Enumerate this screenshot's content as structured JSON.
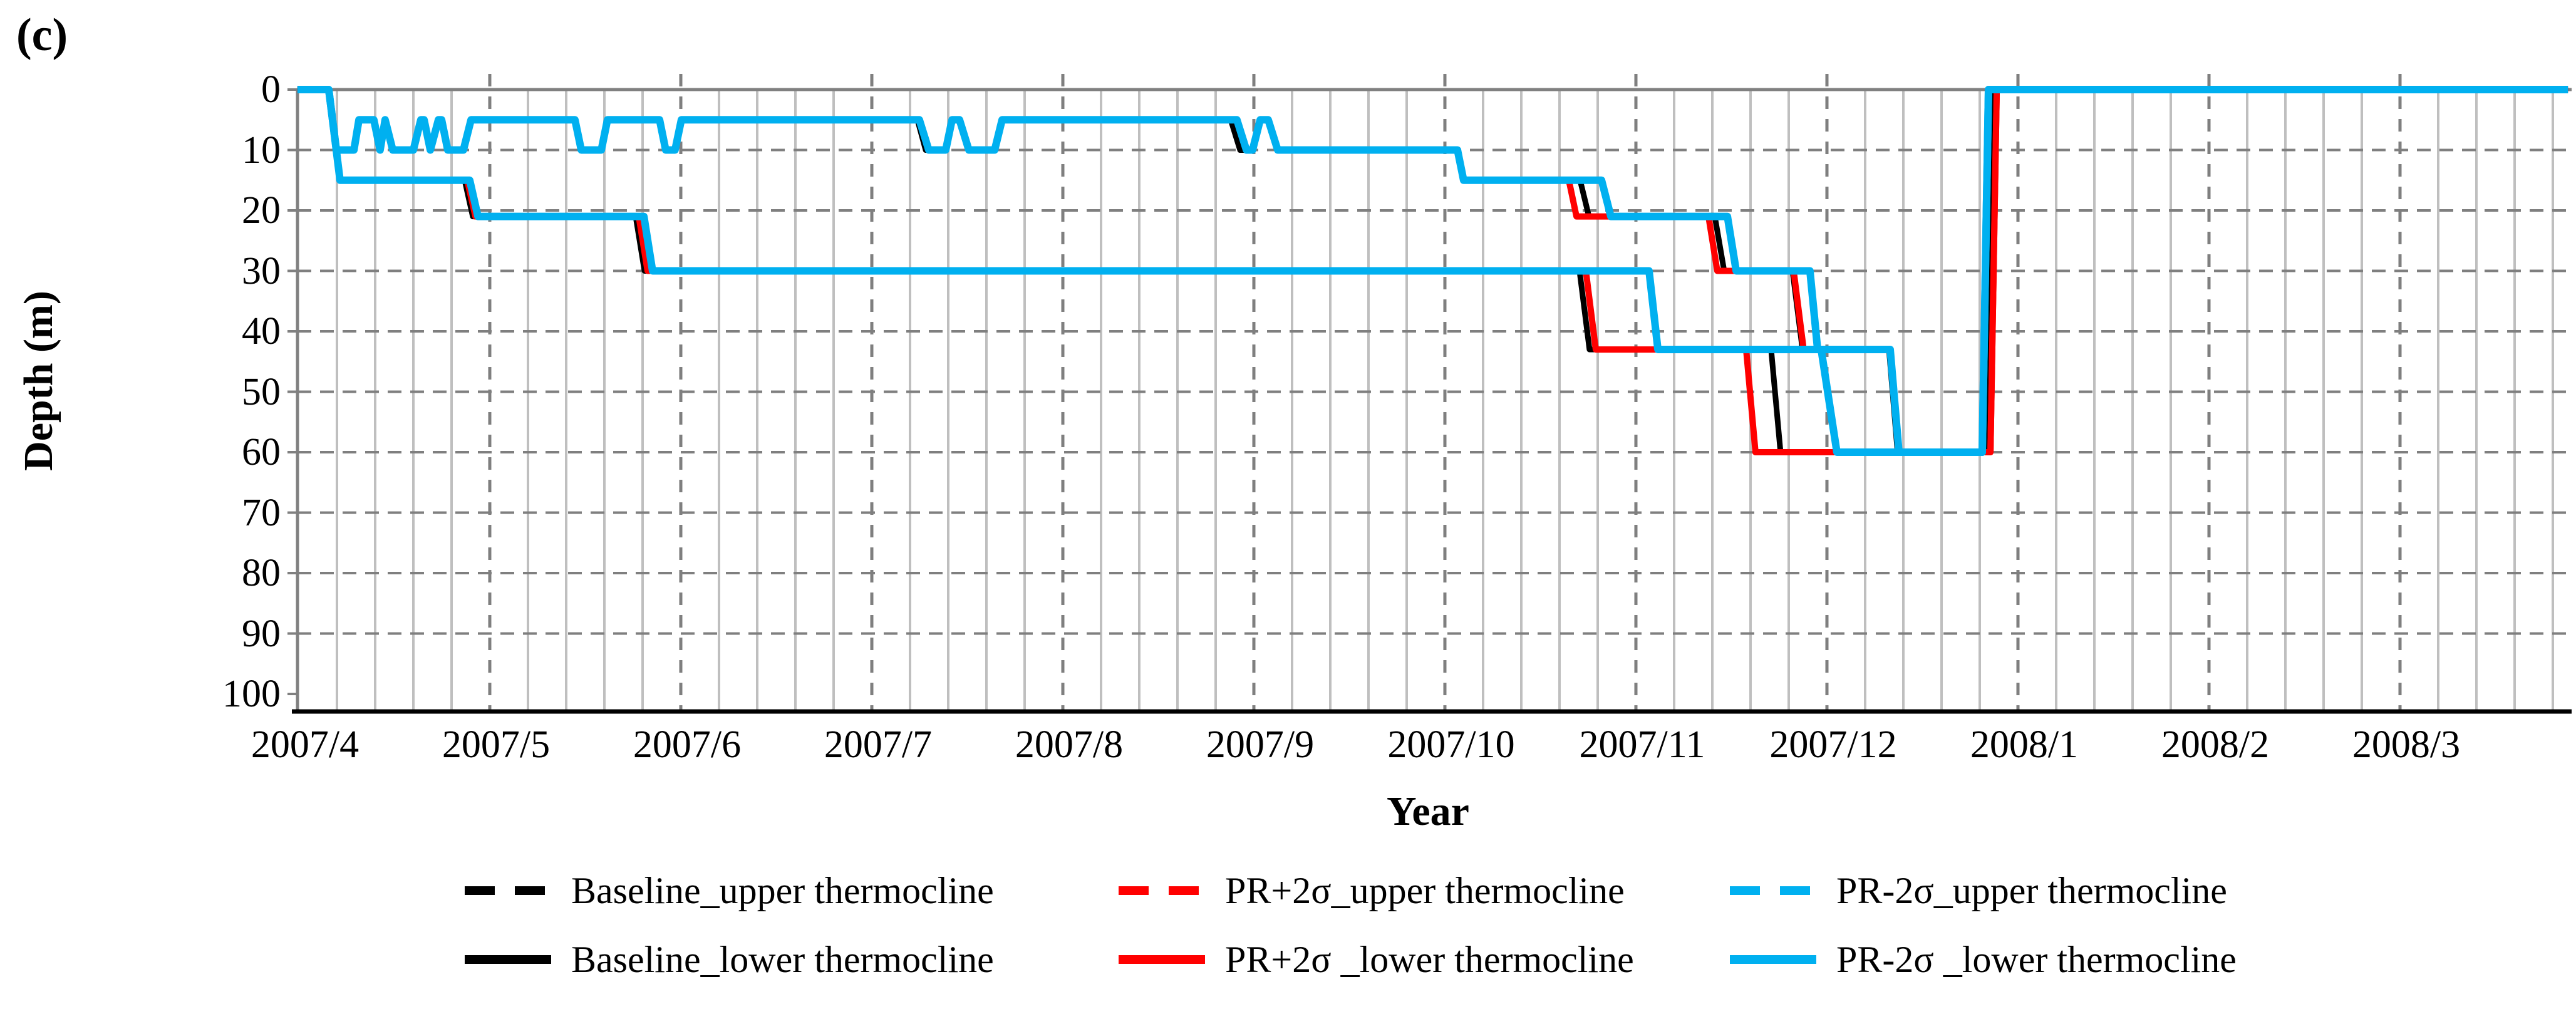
{
  "figure_label": "(c)",
  "axes": {
    "x_title": "Year",
    "y_title": "Depth (m)",
    "x_tick_labels": [
      "2007/4",
      "2007/5",
      "2007/6",
      "2007/7",
      "2007/8",
      "2007/9",
      "2007/10",
      "2007/11",
      "2007/12",
      "2008/1",
      "2008/2",
      "2008/3"
    ],
    "y_tick_labels": [
      "0",
      "10",
      "20",
      "30",
      "40",
      "50",
      "60",
      "70",
      "80",
      "90",
      "100"
    ],
    "y_ticks": [
      0,
      10,
      20,
      30,
      40,
      50,
      60,
      70,
      80,
      90,
      100
    ]
  },
  "colors": {
    "baseline": "#000000",
    "pr_plus": "#ff0000",
    "pr_minus": "#00b0f0",
    "grid_minor": "#bfbfbf",
    "grid_dashed": "#7f7f7f",
    "axis_gray": "#808080",
    "axis_black": "#000000"
  },
  "legend": {
    "rows": [
      {
        "items": [
          {
            "label": "Baseline_upper thermocline",
            "color": "#000000",
            "dash": true
          },
          {
            "label": "PR+2σ_upper thermocline",
            "color": "#ff0000",
            "dash": true
          },
          {
            "label": "PR-2σ_upper thermocline",
            "color": "#00b0f0",
            "dash": true
          }
        ]
      },
      {
        "items": [
          {
            "label": "Baseline_lower thermocline",
            "color": "#000000",
            "dash": false
          },
          {
            "label": "PR+2σ _lower thermocline",
            "color": "#ff0000",
            "dash": false
          },
          {
            "label": "PR-2σ _lower thermocline",
            "color": "#00b0f0",
            "dash": false
          }
        ]
      }
    ]
  },
  "chart_data": {
    "type": "line",
    "title": "",
    "xlabel": "Year",
    "ylabel": "Depth (m)",
    "x_unit": "months_after_2007_04",
    "x_domain": [
      -0.007,
      11.879
    ],
    "y_domain_depth_m": [
      0,
      100
    ],
    "y_axis_reversed": true,
    "grid": {
      "h_dashed_every_10m": true,
      "v_minor_weekly": true,
      "v_dashed_monthly": true
    },
    "legend_position": "bottom",
    "series": [
      {
        "name": "Baseline_upper thermocline",
        "color": "#000000",
        "width": 9,
        "points": [
          [
            -0.007,
            0
          ],
          [
            0.157,
            0
          ],
          [
            0.197,
            10
          ],
          [
            0.289,
            10
          ],
          [
            0.315,
            5
          ],
          [
            0.393,
            5
          ],
          [
            0.426,
            10
          ],
          [
            0.452,
            5
          ],
          [
            0.492,
            10
          ],
          [
            0.6,
            10
          ],
          [
            0.639,
            5
          ],
          [
            0.656,
            5
          ],
          [
            0.689,
            10
          ],
          [
            0.731,
            5
          ],
          [
            0.748,
            5
          ],
          [
            0.78,
            10
          ],
          [
            0.862,
            10
          ],
          [
            0.902,
            5
          ],
          [
            1.446,
            5
          ],
          [
            1.479,
            10
          ],
          [
            1.584,
            10
          ],
          [
            1.616,
            5
          ],
          [
            1.889,
            5
          ],
          [
            1.921,
            10
          ],
          [
            1.97,
            10
          ],
          [
            2.003,
            5
          ],
          [
            3.239,
            5
          ],
          [
            3.282,
            10
          ],
          [
            3.387,
            10
          ],
          [
            3.42,
            5
          ],
          [
            3.459,
            5
          ],
          [
            3.508,
            10
          ],
          [
            3.643,
            10
          ],
          [
            3.682,
            5
          ],
          [
            4.879,
            5
          ],
          [
            4.928,
            10
          ],
          [
            4.993,
            10
          ],
          [
            5.033,
            5
          ],
          [
            5.075,
            5
          ],
          [
            5.125,
            10
          ],
          [
            6.066,
            10
          ],
          [
            6.098,
            15
          ],
          [
            6.708,
            15
          ],
          [
            6.754,
            21
          ],
          [
            7.413,
            21
          ],
          [
            7.462,
            30
          ],
          [
            7.82,
            30
          ],
          [
            7.872,
            43
          ],
          [
            8.325,
            43
          ],
          [
            8.37,
            60
          ],
          [
            8.83,
            60
          ],
          [
            8.862,
            0
          ],
          [
            11.879,
            0
          ]
        ]
      },
      {
        "name": "Baseline_lower thermocline",
        "color": "#000000",
        "width": 9,
        "points": [
          [
            -0.007,
            0
          ],
          [
            0.157,
            0
          ],
          [
            0.216,
            15
          ],
          [
            0.869,
            15
          ],
          [
            0.911,
            21
          ],
          [
            1.764,
            21
          ],
          [
            1.81,
            30
          ],
          [
            6.705,
            30
          ],
          [
            6.757,
            43
          ],
          [
            7.708,
            43
          ],
          [
            7.757,
            60
          ],
          [
            8.83,
            60
          ],
          [
            8.862,
            0
          ],
          [
            11.879,
            0
          ]
        ]
      },
      {
        "name": "PR+2σ_upper thermocline",
        "color": "#ff0000",
        "width": 10,
        "points": [
          [
            -0.007,
            0
          ],
          [
            0.157,
            0
          ],
          [
            0.197,
            10
          ],
          [
            0.289,
            10
          ],
          [
            0.315,
            5
          ],
          [
            0.393,
            5
          ],
          [
            0.426,
            10
          ],
          [
            0.452,
            5
          ],
          [
            0.492,
            10
          ],
          [
            0.6,
            10
          ],
          [
            0.639,
            5
          ],
          [
            0.656,
            5
          ],
          [
            0.689,
            10
          ],
          [
            0.731,
            5
          ],
          [
            0.748,
            5
          ],
          [
            0.78,
            10
          ],
          [
            0.862,
            10
          ],
          [
            0.902,
            5
          ],
          [
            1.446,
            5
          ],
          [
            1.479,
            10
          ],
          [
            1.584,
            10
          ],
          [
            1.616,
            5
          ],
          [
            1.889,
            5
          ],
          [
            1.921,
            10
          ],
          [
            1.97,
            10
          ],
          [
            2.003,
            5
          ],
          [
            3.249,
            5
          ],
          [
            3.298,
            10
          ],
          [
            3.387,
            10
          ],
          [
            3.42,
            5
          ],
          [
            3.459,
            5
          ],
          [
            3.508,
            10
          ],
          [
            3.643,
            10
          ],
          [
            3.682,
            5
          ],
          [
            4.911,
            5
          ],
          [
            4.961,
            10
          ],
          [
            4.993,
            10
          ],
          [
            5.033,
            5
          ],
          [
            5.075,
            5
          ],
          [
            5.125,
            10
          ],
          [
            6.066,
            10
          ],
          [
            6.098,
            15
          ],
          [
            6.649,
            15
          ],
          [
            6.689,
            21
          ],
          [
            7.38,
            21
          ],
          [
            7.426,
            30
          ],
          [
            7.826,
            30
          ],
          [
            7.878,
            43
          ],
          [
            8.331,
            43
          ],
          [
            8.377,
            60
          ],
          [
            8.856,
            60
          ],
          [
            8.889,
            0
          ],
          [
            11.879,
            0
          ]
        ]
      },
      {
        "name": "PR+2σ _lower thermocline",
        "color": "#ff0000",
        "width": 10,
        "points": [
          [
            -0.007,
            0
          ],
          [
            0.157,
            0
          ],
          [
            0.216,
            15
          ],
          [
            0.882,
            15
          ],
          [
            0.925,
            21
          ],
          [
            1.78,
            21
          ],
          [
            1.826,
            30
          ],
          [
            6.738,
            30
          ],
          [
            6.79,
            43
          ],
          [
            7.577,
            43
          ],
          [
            7.626,
            60
          ],
          [
            8.856,
            60
          ],
          [
            8.889,
            0
          ],
          [
            11.879,
            0
          ]
        ]
      },
      {
        "name": "PR-2σ_upper thermocline",
        "color": "#00b0f0",
        "width": 12,
        "points": [
          [
            -0.007,
            0
          ],
          [
            0.157,
            0
          ],
          [
            0.197,
            10
          ],
          [
            0.289,
            10
          ],
          [
            0.315,
            5
          ],
          [
            0.393,
            5
          ],
          [
            0.426,
            10
          ],
          [
            0.452,
            5
          ],
          [
            0.492,
            10
          ],
          [
            0.6,
            10
          ],
          [
            0.639,
            5
          ],
          [
            0.656,
            5
          ],
          [
            0.689,
            10
          ],
          [
            0.731,
            5
          ],
          [
            0.748,
            5
          ],
          [
            0.78,
            10
          ],
          [
            0.862,
            10
          ],
          [
            0.902,
            5
          ],
          [
            1.446,
            5
          ],
          [
            1.479,
            10
          ],
          [
            1.584,
            10
          ],
          [
            1.616,
            5
          ],
          [
            1.889,
            5
          ],
          [
            1.921,
            10
          ],
          [
            1.97,
            10
          ],
          [
            2.003,
            5
          ],
          [
            3.249,
            5
          ],
          [
            3.298,
            10
          ],
          [
            3.387,
            10
          ],
          [
            3.42,
            5
          ],
          [
            3.459,
            5
          ],
          [
            3.508,
            10
          ],
          [
            3.643,
            10
          ],
          [
            3.682,
            5
          ],
          [
            4.911,
            5
          ],
          [
            4.961,
            10
          ],
          [
            4.993,
            10
          ],
          [
            5.033,
            5
          ],
          [
            5.075,
            5
          ],
          [
            5.125,
            10
          ],
          [
            6.066,
            10
          ],
          [
            6.098,
            15
          ],
          [
            6.82,
            15
          ],
          [
            6.869,
            21
          ],
          [
            7.479,
            21
          ],
          [
            7.525,
            30
          ],
          [
            7.911,
            30
          ],
          [
            7.951,
            43
          ],
          [
            8.331,
            43
          ],
          [
            8.377,
            60
          ],
          [
            8.813,
            60
          ],
          [
            8.846,
            0
          ],
          [
            11.879,
            0
          ]
        ]
      },
      {
        "name": "PR-2σ _lower thermocline",
        "color": "#00b0f0",
        "width": 12,
        "points": [
          [
            -0.007,
            0
          ],
          [
            0.157,
            0
          ],
          [
            0.216,
            15
          ],
          [
            0.895,
            15
          ],
          [
            0.938,
            21
          ],
          [
            1.807,
            21
          ],
          [
            1.852,
            30
          ],
          [
            7.069,
            30
          ],
          [
            7.115,
            43
          ],
          [
            7.97,
            43
          ],
          [
            8.052,
            60
          ],
          [
            8.813,
            60
          ],
          [
            8.846,
            0
          ],
          [
            11.879,
            0
          ]
        ]
      }
    ]
  }
}
